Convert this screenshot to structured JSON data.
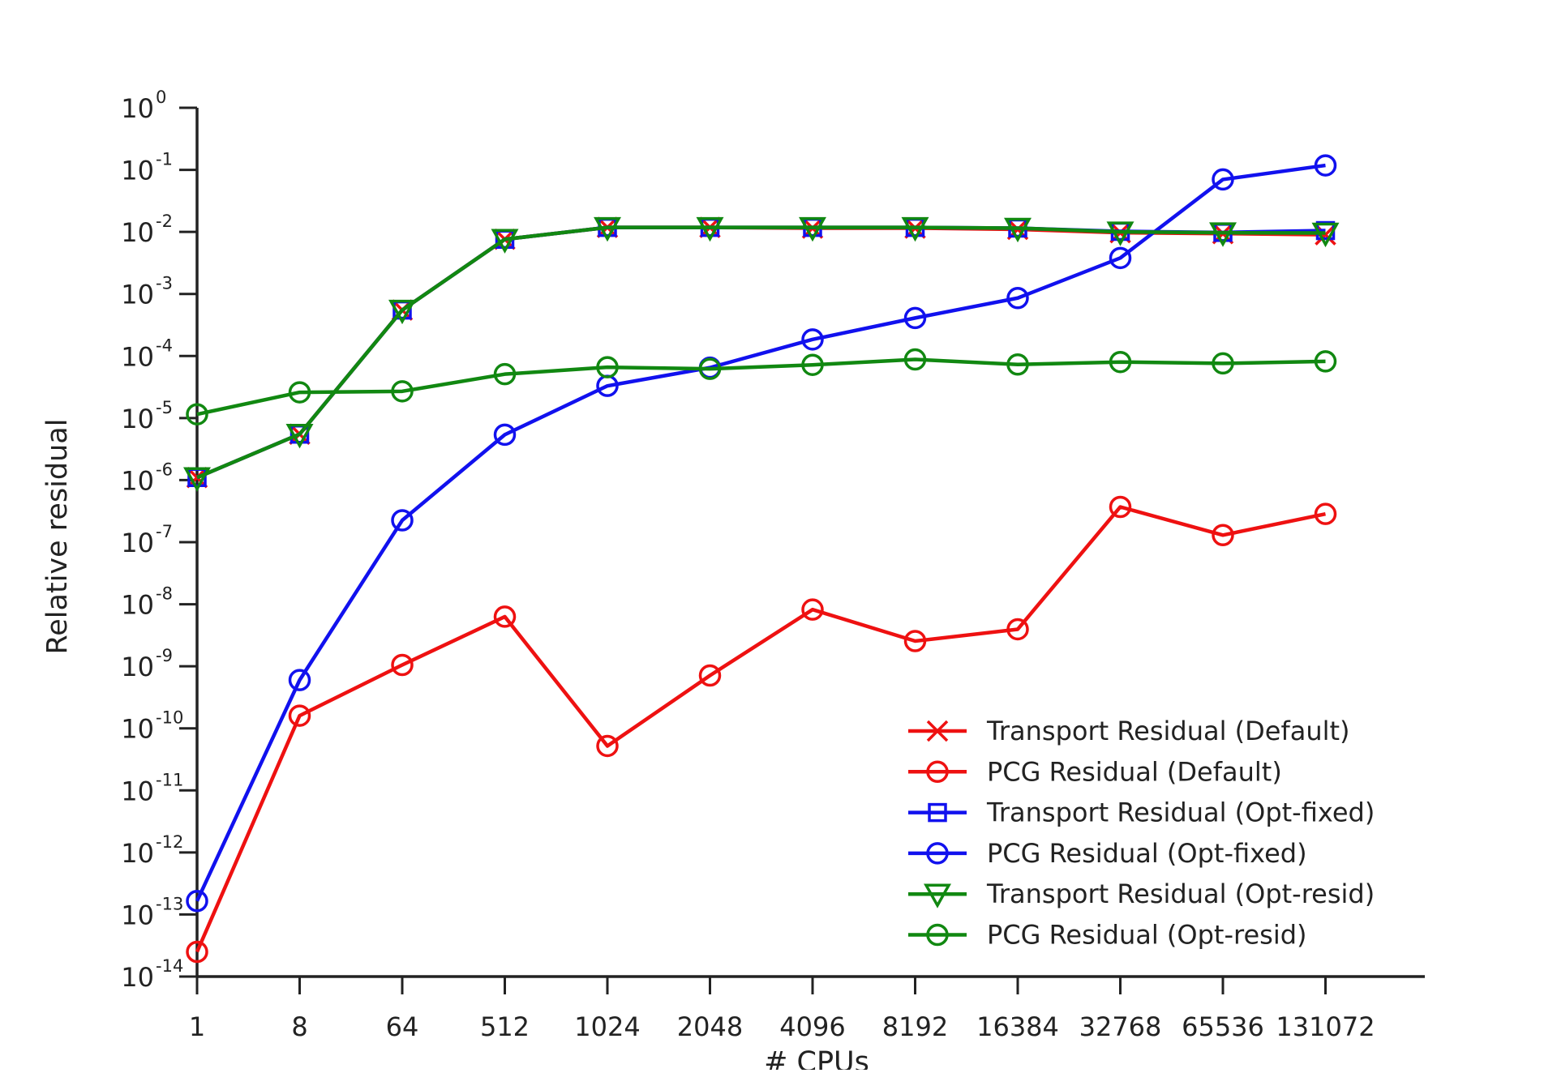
{
  "chart_data": {
    "type": "line",
    "xlabel": "# CPUs",
    "ylabel": "Relative residual",
    "x_scale": "categorical",
    "y_scale": "log",
    "ylim": [
      1e-14,
      1
    ],
    "grid": false,
    "legend_position": "lower-right",
    "categories": [
      "1",
      "8",
      "64",
      "512",
      "1024",
      "2048",
      "4096",
      "8192",
      "16384",
      "32768",
      "65536",
      "131072"
    ],
    "y_ticks": [
      {
        "base": "10",
        "exp": "0"
      },
      {
        "base": "10",
        "exp": "-1"
      },
      {
        "base": "10",
        "exp": "-2"
      },
      {
        "base": "10",
        "exp": "-3"
      },
      {
        "base": "10",
        "exp": "-4"
      },
      {
        "base": "10",
        "exp": "-5"
      },
      {
        "base": "10",
        "exp": "-6"
      },
      {
        "base": "10",
        "exp": "-7"
      },
      {
        "base": "10",
        "exp": "-8"
      },
      {
        "base": "10",
        "exp": "-9"
      },
      {
        "base": "10",
        "exp": "-10"
      },
      {
        "base": "10",
        "exp": "-11"
      },
      {
        "base": "10",
        "exp": "-12"
      },
      {
        "base": "10",
        "exp": "-13"
      },
      {
        "base": "10",
        "exp": "-14"
      }
    ],
    "series": [
      {
        "name": "Transport Residual (Default)",
        "color": "#ee1111",
        "marker": "x",
        "values": [
          1.1e-06,
          5.5e-06,
          0.00055,
          0.0076,
          0.0118,
          0.0118,
          0.0115,
          0.0115,
          0.011,
          0.0097,
          0.0094,
          0.009
        ]
      },
      {
        "name": "PCG Residual (Default)",
        "color": "#ee1111",
        "marker": "circle",
        "values": [
          2.5e-14,
          1.6e-10,
          1.05e-09,
          6.3e-09,
          5.2e-11,
          7.1e-10,
          8.2e-09,
          2.55e-09,
          3.95e-09,
          3.7e-07,
          1.3e-07,
          2.85e-07
        ]
      },
      {
        "name": "Transport Residual (Opt-fixed)",
        "color": "#1111ee",
        "marker": "square",
        "values": [
          1.1e-06,
          5.5e-06,
          0.00055,
          0.0076,
          0.0118,
          0.0118,
          0.0118,
          0.0118,
          0.0115,
          0.0102,
          0.0098,
          0.0105
        ]
      },
      {
        "name": "PCG Residual (Opt-fixed)",
        "color": "#1111ee",
        "marker": "circle",
        "values": [
          1.65e-13,
          6e-10,
          2.25e-07,
          5.4e-06,
          3.3e-05,
          6.5e-05,
          0.000185,
          0.00041,
          0.00086,
          0.0038,
          0.07,
          0.118
        ]
      },
      {
        "name": "Transport Residual (Opt-resid)",
        "color": "#118811",
        "marker": "triangle-down",
        "values": [
          1.1e-06,
          5.5e-06,
          0.00055,
          0.0076,
          0.0118,
          0.0118,
          0.0118,
          0.0118,
          0.0115,
          0.01,
          0.0097,
          0.0096
        ]
      },
      {
        "name": "PCG Residual (Opt-resid)",
        "color": "#118811",
        "marker": "circle",
        "values": [
          1.15e-05,
          2.6e-05,
          2.7e-05,
          5.1e-05,
          6.6e-05,
          6.2e-05,
          7.2e-05,
          8.8e-05,
          7.3e-05,
          8e-05,
          7.6e-05,
          8.2e-05
        ]
      }
    ]
  }
}
